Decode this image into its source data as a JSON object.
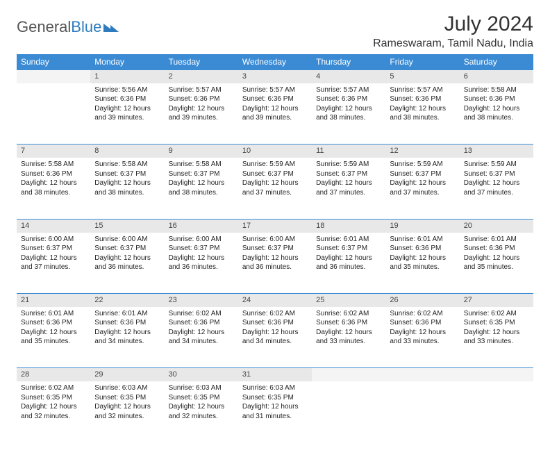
{
  "logo": {
    "text1": "General",
    "text2": "Blue"
  },
  "title": "July 2024",
  "location": "Rameswaram, Tamil Nadu, India",
  "colors": {
    "header_bg": "#3b8bd4",
    "header_fg": "#ffffff",
    "daynum_bg": "#e8e8e8",
    "daynum_empty_bg": "#f4f4f4",
    "border": "#3b8bd4",
    "text": "#222222",
    "logo_gray": "#555555",
    "logo_blue": "#2e7bc0",
    "page_bg": "#ffffff"
  },
  "weekdays": [
    "Sunday",
    "Monday",
    "Tuesday",
    "Wednesday",
    "Thursday",
    "Friday",
    "Saturday"
  ],
  "weeks": [
    [
      null,
      {
        "n": "1",
        "sr": "5:56 AM",
        "ss": "6:36 PM",
        "dl": "12 hours and 39 minutes."
      },
      {
        "n": "2",
        "sr": "5:57 AM",
        "ss": "6:36 PM",
        "dl": "12 hours and 39 minutes."
      },
      {
        "n": "3",
        "sr": "5:57 AM",
        "ss": "6:36 PM",
        "dl": "12 hours and 39 minutes."
      },
      {
        "n": "4",
        "sr": "5:57 AM",
        "ss": "6:36 PM",
        "dl": "12 hours and 38 minutes."
      },
      {
        "n": "5",
        "sr": "5:57 AM",
        "ss": "6:36 PM",
        "dl": "12 hours and 38 minutes."
      },
      {
        "n": "6",
        "sr": "5:58 AM",
        "ss": "6:36 PM",
        "dl": "12 hours and 38 minutes."
      }
    ],
    [
      {
        "n": "7",
        "sr": "5:58 AM",
        "ss": "6:36 PM",
        "dl": "12 hours and 38 minutes."
      },
      {
        "n": "8",
        "sr": "5:58 AM",
        "ss": "6:37 PM",
        "dl": "12 hours and 38 minutes."
      },
      {
        "n": "9",
        "sr": "5:58 AM",
        "ss": "6:37 PM",
        "dl": "12 hours and 38 minutes."
      },
      {
        "n": "10",
        "sr": "5:59 AM",
        "ss": "6:37 PM",
        "dl": "12 hours and 37 minutes."
      },
      {
        "n": "11",
        "sr": "5:59 AM",
        "ss": "6:37 PM",
        "dl": "12 hours and 37 minutes."
      },
      {
        "n": "12",
        "sr": "5:59 AM",
        "ss": "6:37 PM",
        "dl": "12 hours and 37 minutes."
      },
      {
        "n": "13",
        "sr": "5:59 AM",
        "ss": "6:37 PM",
        "dl": "12 hours and 37 minutes."
      }
    ],
    [
      {
        "n": "14",
        "sr": "6:00 AM",
        "ss": "6:37 PM",
        "dl": "12 hours and 37 minutes."
      },
      {
        "n": "15",
        "sr": "6:00 AM",
        "ss": "6:37 PM",
        "dl": "12 hours and 36 minutes."
      },
      {
        "n": "16",
        "sr": "6:00 AM",
        "ss": "6:37 PM",
        "dl": "12 hours and 36 minutes."
      },
      {
        "n": "17",
        "sr": "6:00 AM",
        "ss": "6:37 PM",
        "dl": "12 hours and 36 minutes."
      },
      {
        "n": "18",
        "sr": "6:01 AM",
        "ss": "6:37 PM",
        "dl": "12 hours and 36 minutes."
      },
      {
        "n": "19",
        "sr": "6:01 AM",
        "ss": "6:36 PM",
        "dl": "12 hours and 35 minutes."
      },
      {
        "n": "20",
        "sr": "6:01 AM",
        "ss": "6:36 PM",
        "dl": "12 hours and 35 minutes."
      }
    ],
    [
      {
        "n": "21",
        "sr": "6:01 AM",
        "ss": "6:36 PM",
        "dl": "12 hours and 35 minutes."
      },
      {
        "n": "22",
        "sr": "6:01 AM",
        "ss": "6:36 PM",
        "dl": "12 hours and 34 minutes."
      },
      {
        "n": "23",
        "sr": "6:02 AM",
        "ss": "6:36 PM",
        "dl": "12 hours and 34 minutes."
      },
      {
        "n": "24",
        "sr": "6:02 AM",
        "ss": "6:36 PM",
        "dl": "12 hours and 34 minutes."
      },
      {
        "n": "25",
        "sr": "6:02 AM",
        "ss": "6:36 PM",
        "dl": "12 hours and 33 minutes."
      },
      {
        "n": "26",
        "sr": "6:02 AM",
        "ss": "6:36 PM",
        "dl": "12 hours and 33 minutes."
      },
      {
        "n": "27",
        "sr": "6:02 AM",
        "ss": "6:35 PM",
        "dl": "12 hours and 33 minutes."
      }
    ],
    [
      {
        "n": "28",
        "sr": "6:02 AM",
        "ss": "6:35 PM",
        "dl": "12 hours and 32 minutes."
      },
      {
        "n": "29",
        "sr": "6:03 AM",
        "ss": "6:35 PM",
        "dl": "12 hours and 32 minutes."
      },
      {
        "n": "30",
        "sr": "6:03 AM",
        "ss": "6:35 PM",
        "dl": "12 hours and 32 minutes."
      },
      {
        "n": "31",
        "sr": "6:03 AM",
        "ss": "6:35 PM",
        "dl": "12 hours and 31 minutes."
      },
      null,
      null,
      null
    ]
  ],
  "labels": {
    "sunrise": "Sunrise:",
    "sunset": "Sunset:",
    "daylight": "Daylight:"
  }
}
